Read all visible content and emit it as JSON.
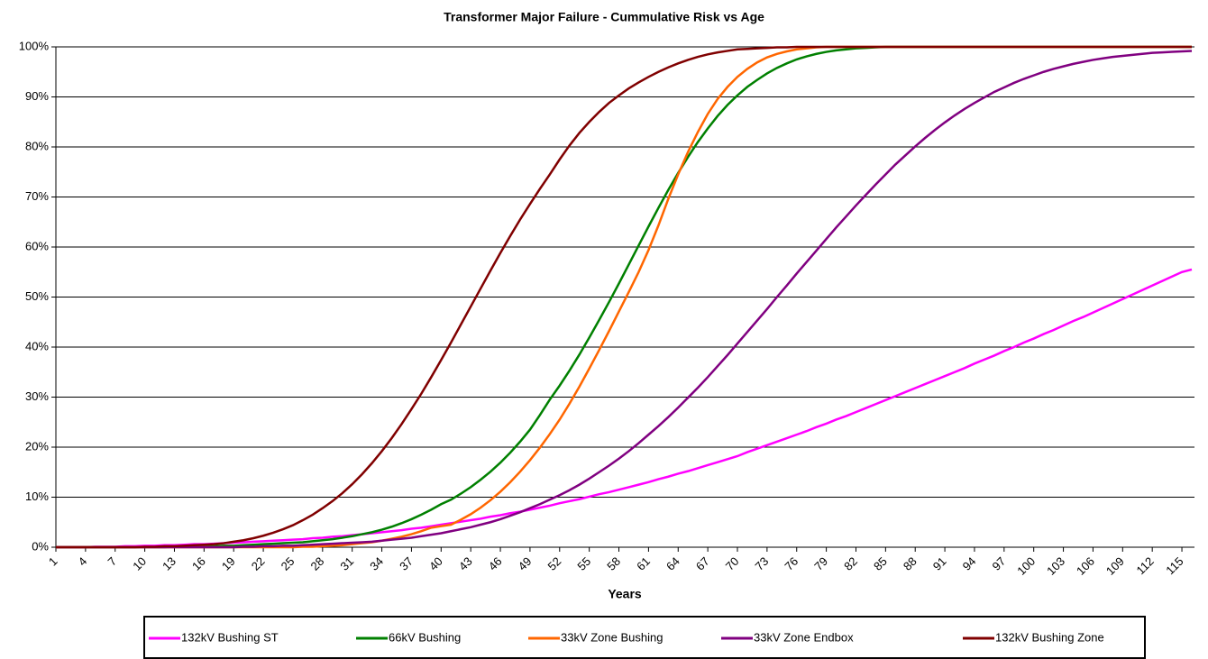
{
  "chart_data": {
    "type": "line",
    "title": "Transformer Major Failure - Cummulative Risk vs Age",
    "x_label": "Years",
    "x": [
      1,
      2,
      3,
      4,
      5,
      6,
      7,
      8,
      9,
      10,
      11,
      12,
      13,
      14,
      15,
      16,
      17,
      18,
      19,
      20,
      21,
      22,
      23,
      24,
      25,
      26,
      27,
      28,
      29,
      30,
      31,
      32,
      33,
      34,
      35,
      36,
      37,
      38,
      39,
      40,
      41,
      42,
      43,
      44,
      45,
      46,
      47,
      48,
      49,
      50,
      51,
      52,
      53,
      54,
      55,
      56,
      57,
      58,
      59,
      60,
      61,
      62,
      63,
      64,
      65,
      66,
      67,
      68,
      69,
      70,
      71,
      72,
      73,
      74,
      75,
      76,
      77,
      78,
      79,
      80,
      81,
      82,
      83,
      84,
      85,
      86,
      87,
      88,
      89,
      90,
      91,
      92,
      93,
      94,
      95,
      96,
      97,
      98,
      99,
      100,
      101,
      102,
      103,
      104,
      105,
      106,
      107,
      108,
      109,
      110,
      111,
      112,
      113,
      114,
      115,
      116
    ],
    "xlim": [
      1,
      116
    ],
    "xticks": [
      1,
      4,
      7,
      10,
      13,
      16,
      19,
      22,
      25,
      28,
      31,
      34,
      37,
      40,
      43,
      46,
      49,
      52,
      55,
      58,
      61,
      64,
      67,
      70,
      73,
      76,
      79,
      82,
      85,
      88,
      91,
      94,
      97,
      100,
      103,
      106,
      109,
      112,
      115
    ],
    "ylim": [
      0,
      100
    ],
    "yticks": [
      {
        "value": 0,
        "label": "0%"
      },
      {
        "value": 10,
        "label": "10%"
      },
      {
        "value": 20,
        "label": "20%"
      },
      {
        "value": 30,
        "label": "30%"
      },
      {
        "value": 40,
        "label": "40%"
      },
      {
        "value": 50,
        "label": "50%"
      },
      {
        "value": 60,
        "label": "60%"
      },
      {
        "value": 70,
        "label": "70%"
      },
      {
        "value": 80,
        "label": "80%"
      },
      {
        "value": 90,
        "label": "90%"
      },
      {
        "value": 100,
        "label": "100%"
      }
    ],
    "grid": true,
    "legend": "bottom",
    "series": [
      {
        "name": "132kV Bushing ST",
        "color": "#ff00ff",
        "values": [
          0,
          0,
          0,
          0,
          0.1,
          0.1,
          0.1,
          0.2,
          0.2,
          0.3,
          0.3,
          0.4,
          0.4,
          0.5,
          0.6,
          0.6,
          0.7,
          0.8,
          0.9,
          1,
          1.1,
          1.2,
          1.3,
          1.4,
          1.5,
          1.6,
          1.8,
          1.9,
          2.1,
          2.2,
          2.4,
          2.6,
          2.8,
          3,
          3.2,
          3.4,
          3.7,
          3.9,
          4.2,
          4.5,
          4.8,
          5.1,
          5.4,
          5.7,
          6.1,
          6.4,
          6.8,
          7.1,
          7.5,
          7.9,
          8.3,
          8.8,
          9.2,
          9.6,
          10.1,
          10.6,
          11,
          11.5,
          12,
          12.5,
          13,
          13.6,
          14.1,
          14.7,
          15.2,
          15.8,
          16.4,
          17,
          17.6,
          18.2,
          19,
          19.7,
          20.4,
          21.1,
          21.8,
          22.5,
          23.2,
          24,
          24.7,
          25.5,
          26.2,
          27,
          27.8,
          28.6,
          29.4,
          30.2,
          31,
          31.8,
          32.6,
          33.4,
          34.2,
          35,
          35.8,
          36.7,
          37.5,
          38.3,
          39.2,
          40,
          40.9,
          41.7,
          42.6,
          43.4,
          44.3,
          45.2,
          46,
          46.9,
          47.8,
          48.7,
          49.6,
          50.5,
          51.4,
          52.3,
          53.2,
          54.1,
          55,
          55.5
        ]
      },
      {
        "name": "66kV Bushing",
        "color": "#008000",
        "values": [
          0,
          0,
          0,
          0,
          0,
          0,
          0,
          0,
          0,
          0,
          0,
          0,
          0.1,
          0.1,
          0.1,
          0.2,
          0.2,
          0.3,
          0.3,
          0.4,
          0.5,
          0.6,
          0.7,
          0.8,
          0.9,
          1,
          1.2,
          1.4,
          1.6,
          1.9,
          2.2,
          2.6,
          3,
          3.5,
          4.1,
          4.8,
          5.6,
          6.5,
          7.5,
          8.6,
          9.5,
          10.7,
          12,
          13.5,
          15.1,
          16.9,
          18.9,
          21.1,
          23.5,
          26.4,
          29.5,
          32.3,
          35.3,
          38.5,
          41.9,
          45.4,
          49,
          52.7,
          56.5,
          60.3,
          64.1,
          67.8,
          71.4,
          74.8,
          78,
          81,
          83.7,
          86.2,
          88.4,
          90.3,
          92,
          93.4,
          94.7,
          95.8,
          96.7,
          97.5,
          98.1,
          98.6,
          99,
          99.3,
          99.5,
          99.7,
          99.8,
          99.9,
          100,
          100,
          100,
          100,
          100,
          100,
          100,
          100,
          100,
          100,
          100,
          100,
          100,
          100,
          100,
          100,
          100,
          100,
          100,
          100,
          100,
          100,
          100,
          100,
          100,
          100,
          100,
          100,
          100,
          100,
          100,
          100
        ]
      },
      {
        "name": "33kV Zone Bushing",
        "color": "#ff6600",
        "values": [
          0,
          0,
          0,
          0,
          0,
          0,
          0,
          0,
          0,
          0,
          0,
          0,
          0,
          0,
          0,
          0,
          0,
          0,
          0,
          0,
          0,
          0,
          0,
          0,
          0,
          0.1,
          0.1,
          0.2,
          0.3,
          0.4,
          0.6,
          0.8,
          1,
          1.3,
          1.7,
          2.1,
          2.6,
          3.2,
          3.9,
          4.2,
          4.5,
          5.5,
          6.6,
          7.9,
          9.4,
          11.1,
          13,
          15.1,
          17.4,
          19.9,
          22.6,
          25.5,
          28.7,
          32.1,
          35.7,
          39.4,
          43.2,
          47.1,
          51,
          55,
          59.4,
          64.3,
          69.6,
          74.5,
          79,
          83,
          86.6,
          89.6,
          92,
          94,
          95.6,
          96.9,
          97.9,
          98.6,
          99.1,
          99.5,
          99.7,
          99.9,
          100,
          100,
          100,
          100,
          100,
          100,
          100,
          100,
          100,
          100,
          100,
          100,
          100,
          100,
          100,
          100,
          100,
          100,
          100,
          100,
          100,
          100,
          100,
          100,
          100,
          100,
          100,
          100,
          100,
          100,
          100,
          100,
          100,
          100,
          100,
          100,
          100,
          100
        ]
      },
      {
        "name": "33kV Zone Endbox",
        "color": "#800080",
        "values": [
          0,
          0,
          0,
          0,
          0,
          0,
          0,
          0,
          0,
          0,
          0,
          0,
          0,
          0,
          0,
          0,
          0,
          0,
          0,
          0.1,
          0.1,
          0.2,
          0.2,
          0.3,
          0.3,
          0.4,
          0.5,
          0.6,
          0.7,
          0.8,
          0.9,
          1,
          1.1,
          1.3,
          1.5,
          1.7,
          1.9,
          2.2,
          2.5,
          2.8,
          3.2,
          3.6,
          4,
          4.5,
          5,
          5.6,
          6.3,
          7,
          7.8,
          8.6,
          9.5,
          10.4,
          11.4,
          12.5,
          13.7,
          15,
          16.3,
          17.7,
          19.2,
          20.8,
          22.5,
          24.2,
          26,
          27.9,
          29.9,
          31.9,
          34,
          36.2,
          38.4,
          40.7,
          43,
          45.3,
          47.6,
          50,
          52.3,
          54.7,
          57,
          59.3,
          61.6,
          63.9,
          66.1,
          68.3,
          70.4,
          72.5,
          74.5,
          76.5,
          78.3,
          80.1,
          81.8,
          83.4,
          84.9,
          86.3,
          87.6,
          88.8,
          89.9,
          91,
          91.9,
          92.8,
          93.6,
          94.3,
          95,
          95.6,
          96.1,
          96.6,
          97,
          97.4,
          97.7,
          98,
          98.2,
          98.4,
          98.6,
          98.8,
          98.9,
          99,
          99.1,
          99.2
        ]
      },
      {
        "name": "132kV Bushing Zone",
        "color": "#800000",
        "values": [
          0,
          0,
          0,
          0,
          0,
          0,
          0,
          0,
          0,
          0.1,
          0.1,
          0.2,
          0.2,
          0.3,
          0.4,
          0.5,
          0.6,
          0.8,
          1.1,
          1.4,
          1.8,
          2.3,
          2.9,
          3.6,
          4.4,
          5.4,
          6.5,
          7.8,
          9.2,
          10.8,
          12.6,
          14.6,
          16.8,
          19.2,
          21.8,
          24.6,
          27.6,
          30.7,
          34,
          37.4,
          40.9,
          44.5,
          48.1,
          51.7,
          55.3,
          58.8,
          62.2,
          65.5,
          68.6,
          71.6,
          74.5,
          77.5,
          80.3,
          82.8,
          85,
          87,
          88.8,
          90.3,
          91.7,
          92.9,
          94,
          95,
          95.9,
          96.7,
          97.4,
          98,
          98.5,
          98.9,
          99.2,
          99.5,
          99.6,
          99.7,
          99.8,
          99.9,
          99.9,
          100,
          100,
          100,
          100,
          100,
          100,
          100,
          100,
          100,
          100,
          100,
          100,
          100,
          100,
          100,
          100,
          100,
          100,
          100,
          100,
          100,
          100,
          100,
          100,
          100,
          100,
          100,
          100,
          100,
          100,
          100,
          100,
          100,
          100,
          100,
          100,
          100,
          100,
          100,
          100,
          100
        ]
      }
    ]
  }
}
